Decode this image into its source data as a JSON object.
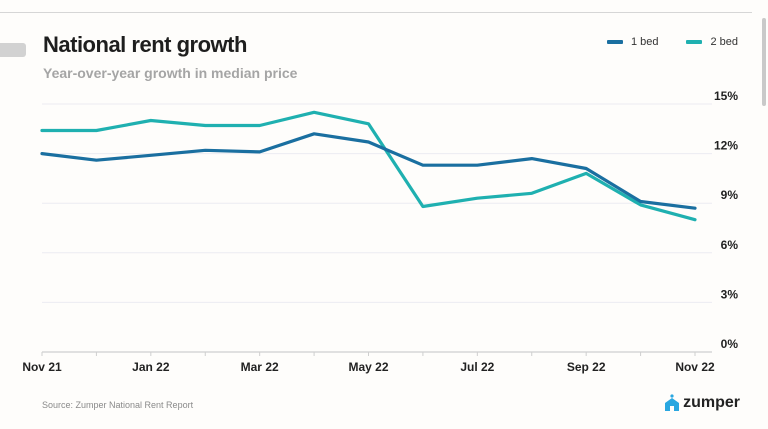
{
  "chart_data": {
    "type": "line",
    "title": "National rent growth",
    "subtitle": "Year-over-year growth in median price",
    "x": [
      "Nov 21",
      "Dec 21",
      "Jan 22",
      "Feb 22",
      "Mar 22",
      "Apr 22",
      "May 22",
      "Jun 22",
      "Jul 22",
      "Aug 22",
      "Sep 22",
      "Oct 22",
      "Nov 22"
    ],
    "x_tick_labels": [
      "Nov 21",
      "Jan 22",
      "Mar 22",
      "May 22",
      "Jul 22",
      "Sep 22",
      "Nov 22"
    ],
    "y_tick_labels": [
      "0%",
      "3%",
      "6%",
      "9%",
      "12%",
      "15%"
    ],
    "y_ticks": [
      0,
      3,
      6,
      9,
      12,
      15
    ],
    "ylim": [
      0,
      15
    ],
    "ylabel": "",
    "xlabel": "",
    "grid": true,
    "legend_position": "top-right",
    "series": [
      {
        "name": "1 bed",
        "color": "#1a6fa0",
        "values": [
          12.0,
          11.6,
          11.9,
          12.2,
          12.1,
          13.2,
          12.7,
          11.3,
          11.3,
          11.7,
          11.1,
          9.1,
          8.7
        ]
      },
      {
        "name": "2 bed",
        "color": "#1fb0b0",
        "values": [
          13.4,
          13.4,
          14.0,
          13.7,
          13.7,
          14.5,
          13.8,
          8.8,
          9.3,
          9.6,
          10.8,
          8.9,
          8.0
        ]
      }
    ]
  },
  "footer": {
    "source": "Source: Zumper National Rent Report",
    "logo": "zumper"
  }
}
